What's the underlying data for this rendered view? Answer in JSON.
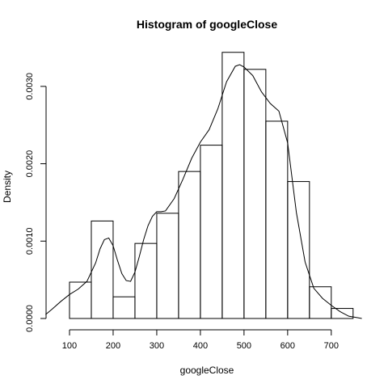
{
  "chart_data": {
    "type": "histogram",
    "title": "Histogram of googleClose",
    "xlabel": "googleClose",
    "ylabel": "Density",
    "xlim": [
      50,
      780
    ],
    "ylim": [
      0,
      0.0035
    ],
    "x_ticks": [
      100,
      200,
      300,
      400,
      500,
      600,
      700
    ],
    "y_ticks": [
      0.0,
      0.001,
      0.002,
      0.003
    ],
    "y_tick_labels": [
      "0.0000",
      "0.0010",
      "0.0020",
      "0.0030"
    ],
    "bins": [
      {
        "x0": 100,
        "x1": 150,
        "density": 0.00047
      },
      {
        "x0": 150,
        "x1": 200,
        "density": 0.00126
      },
      {
        "x0": 200,
        "x1": 250,
        "density": 0.00028
      },
      {
        "x0": 250,
        "x1": 300,
        "density": 0.00097
      },
      {
        "x0": 300,
        "x1": 350,
        "density": 0.00136
      },
      {
        "x0": 350,
        "x1": 400,
        "density": 0.0019
      },
      {
        "x0": 400,
        "x1": 450,
        "density": 0.00224
      },
      {
        "x0": 450,
        "x1": 500,
        "density": 0.00344
      },
      {
        "x0": 500,
        "x1": 550,
        "density": 0.00322
      },
      {
        "x0": 550,
        "x1": 600,
        "density": 0.00255
      },
      {
        "x0": 600,
        "x1": 650,
        "density": 0.00177
      },
      {
        "x0": 650,
        "x1": 700,
        "density": 0.00041
      },
      {
        "x0": 700,
        "x1": 750,
        "density": 0.00013
      }
    ],
    "density_curve": {
      "x": [
        45,
        60,
        80,
        100,
        120,
        140,
        160,
        170,
        180,
        190,
        200,
        210,
        220,
        230,
        240,
        250,
        260,
        270,
        280,
        290,
        300,
        310,
        320,
        340,
        360,
        380,
        400,
        420,
        440,
        460,
        480,
        490,
        500,
        520,
        540,
        560,
        580,
        600,
        620,
        640,
        660,
        680,
        700,
        720,
        740,
        760,
        770
      ],
      "y": [
        5e-05,
        0.00012,
        0.00022,
        0.00031,
        0.00038,
        0.00048,
        0.00072,
        0.0009,
        0.00102,
        0.00104,
        0.00094,
        0.00075,
        0.00058,
        0.00049,
        0.00048,
        0.0006,
        0.0008,
        0.00102,
        0.0012,
        0.00132,
        0.00138,
        0.00138,
        0.00139,
        0.00155,
        0.0018,
        0.00207,
        0.00228,
        0.00244,
        0.00271,
        0.00306,
        0.00326,
        0.00328,
        0.00325,
        0.00314,
        0.00293,
        0.00278,
        0.00268,
        0.00227,
        0.00137,
        0.00073,
        0.00039,
        0.00026,
        0.00017,
        9e-05,
        3e-05,
        1e-05,
        0.0
      ]
    }
  }
}
